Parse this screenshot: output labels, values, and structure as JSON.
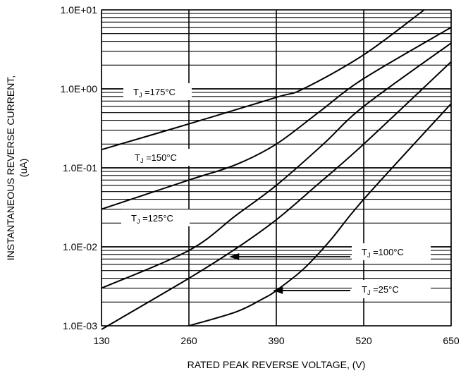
{
  "chart_data": {
    "type": "line",
    "title": "",
    "xlabel": "RATED PEAK REVERSE VOLTAGE, (V)",
    "ylabel_line1": "INSTANTANEOUS REVERSE CURRENT,",
    "ylabel_line2": "(uA)",
    "x_scale": "linear",
    "y_scale": "log",
    "xlim": [
      130,
      650
    ],
    "ylim": [
      0.001,
      10
    ],
    "x_ticks": [
      130,
      260,
      390,
      520,
      650
    ],
    "x_tick_labels": [
      "130",
      "260",
      "390",
      "520",
      "650"
    ],
    "y_ticks": [
      0.001,
      0.01,
      0.1,
      1,
      10
    ],
    "y_tick_labels": [
      "1.0E-03",
      "1.0E-02",
      "1.0E-01",
      "1.0E+00",
      "1.0E+01"
    ],
    "grid": true,
    "series": [
      {
        "name": "TJ =175°C",
        "label": "TJ =175°C",
        "x": [
          130,
          260,
          390,
          430,
          520,
          610
        ],
        "y": [
          0.17,
          0.36,
          0.78,
          1.0,
          2.7,
          10
        ]
      },
      {
        "name": "TJ =150°C",
        "label": "TJ =150°C",
        "x": [
          130,
          260,
          330,
          390,
          455,
          520,
          650
        ],
        "y": [
          0.03,
          0.07,
          0.11,
          0.2,
          0.52,
          1.35,
          6
        ]
      },
      {
        "name": "TJ =125°C",
        "label": "TJ =125°C",
        "x": [
          130,
          260,
          330,
          390,
          460,
          520,
          650
        ],
        "y": [
          0.003,
          0.009,
          0.025,
          0.06,
          0.2,
          0.6,
          3.8
        ]
      },
      {
        "name": "TJ =100°C",
        "label": "TJ =100°C",
        "x": [
          130,
          260,
          330,
          390,
          450,
          520,
          650
        ],
        "y": [
          0.0009,
          0.004,
          0.0095,
          0.022,
          0.06,
          0.2,
          2.2
        ]
      },
      {
        "name": "TJ =25°C",
        "label": "TJ =25°C",
        "x": [
          260,
          330,
          370,
          390,
          430,
          470,
          520,
          650
        ],
        "y": [
          0.001,
          0.0015,
          0.0022,
          0.0028,
          0.0052,
          0.012,
          0.04,
          0.65
        ]
      }
    ],
    "annotations": [
      {
        "text_main": "T",
        "text_sub": "J",
        "text_rest": " =175°C",
        "series": 0
      },
      {
        "text_main": "T",
        "text_sub": "J",
        "text_rest": " =150°C",
        "series": 1
      },
      {
        "text_main": "T",
        "text_sub": "J",
        "text_rest": " =125°C",
        "series": 2
      },
      {
        "text_main": "T",
        "text_sub": "J",
        "text_rest": " =100°C",
        "series": 3,
        "arrow_to_x": 320,
        "arrow_to_y": 0.0075
      },
      {
        "text_main": "T",
        "text_sub": "J",
        "text_rest": " =25°C",
        "series": 4,
        "arrow_to_x": 385,
        "arrow_to_y": 0.0028
      }
    ]
  }
}
